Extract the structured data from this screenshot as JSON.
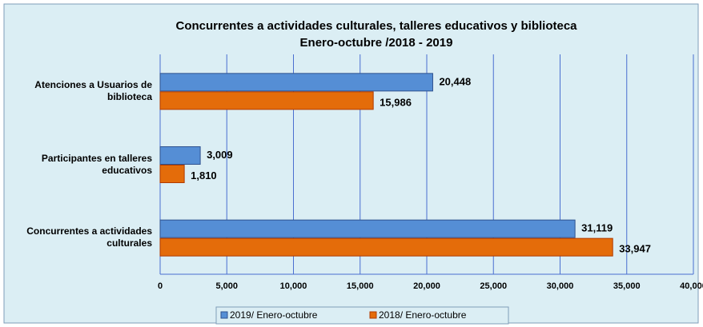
{
  "chart_data": {
    "type": "bar",
    "orientation": "horizontal",
    "title": "Concurrentes a actividades culturales, talleres educativos y biblioteca",
    "subtitle": "Enero-octubre /2018 - 2019",
    "categories": [
      "Atenciones a Usuarios de biblioteca",
      "Participantes en talleres educativos",
      "Concurrentes a actividades culturales"
    ],
    "series": [
      {
        "name": "2019/ Enero-octubre",
        "color": "#558ed5",
        "values": [
          20448,
          3009,
          31119
        ],
        "value_labels": [
          "20,448",
          "3,009",
          "31,119"
        ]
      },
      {
        "name": "2018/ Enero-octubre",
        "color": "#e46c0a",
        "values": [
          15986,
          1810,
          33947
        ],
        "value_labels": [
          "15,986",
          "1,810",
          "33,947"
        ]
      }
    ],
    "xlim": [
      0,
      40000
    ],
    "xticks": [
      0,
      {
        "value": 5000,
        "label": "5,000"
      },
      {
        "value": 10000,
        "label": "10,000"
      },
      {
        "value": 15000,
        "label": "15,000"
      },
      {
        "value": 20000,
        "label": "20,000"
      },
      {
        "value": 25000,
        "label": "25,000"
      },
      {
        "value": 30000,
        "label": "30,000"
      },
      {
        "value": 35000,
        "label": "35,000"
      },
      {
        "value": 40000,
        "label": "40,000"
      }
    ],
    "grid": true,
    "legend": "bottom"
  }
}
